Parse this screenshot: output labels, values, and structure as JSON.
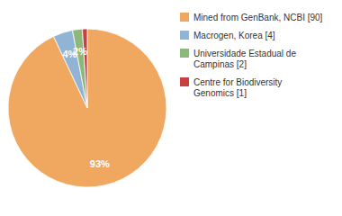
{
  "chart_data": {
    "type": "pie",
    "categories": [
      "Mined from GenBank, NCBI [90]",
      "Macrogen, Korea [4]",
      "Universidade Estadual de\nCampinas [2]",
      "Centre for Biodiversity\nGenomics [1]"
    ],
    "values": [
      93,
      4,
      2,
      1
    ],
    "value_labels": [
      "93%",
      "4%",
      "2%",
      null
    ],
    "colors": [
      "#f0a860",
      "#92b4d4",
      "#8db87c",
      "#c94040"
    ],
    "data_labels": true,
    "legend": "right"
  }
}
